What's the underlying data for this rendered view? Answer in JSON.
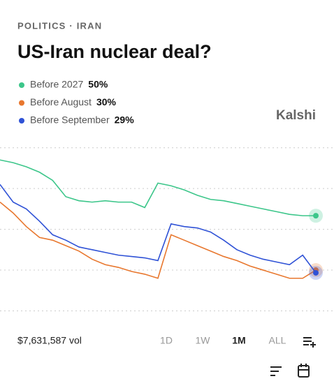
{
  "header": {
    "breadcrumb": "POLITICS · IRAN",
    "brand": "Kalshi"
  },
  "chart_data": {
    "type": "line",
    "title": "US-Iran nuclear deal?",
    "series": [
      {
        "name": "Before 2027",
        "label": "50%",
        "color": "#3cc68a",
        "values": [
          70.5,
          69.5,
          68,
          66,
          63,
          57,
          55.5,
          55,
          55.5,
          55,
          55,
          53,
          62,
          61,
          59.5,
          57.5,
          56,
          55.5,
          54.5,
          53.5,
          52.5,
          51.5,
          50.5,
          50,
          50
        ]
      },
      {
        "name": "Before August",
        "label": "30%",
        "color": "#e8772e",
        "values": [
          55,
          51,
          46,
          42,
          41,
          39,
          37,
          34,
          32,
          31,
          29.5,
          28.5,
          27,
          43,
          41,
          39,
          37,
          35,
          33.5,
          31.5,
          30,
          28.5,
          27,
          27,
          30
        ]
      },
      {
        "name": "Before September",
        "label": "29%",
        "color": "#2f52d6",
        "values": [
          61.5,
          55,
          52.5,
          48,
          43,
          41,
          38.5,
          37.5,
          36.5,
          35.5,
          35,
          34.5,
          33.5,
          47,
          46,
          45.5,
          44,
          41,
          37.5,
          35.5,
          34,
          33,
          32,
          35.5,
          29
        ]
      }
    ],
    "ylim": [
      10,
      78
    ],
    "yticks": [
      15,
      30,
      45,
      60,
      75
    ],
    "grid": true
  },
  "footer": {
    "volume": "$7,631,587 vol",
    "ranges": [
      "1D",
      "1W",
      "1M",
      "ALL"
    ],
    "active_range": "1M"
  }
}
